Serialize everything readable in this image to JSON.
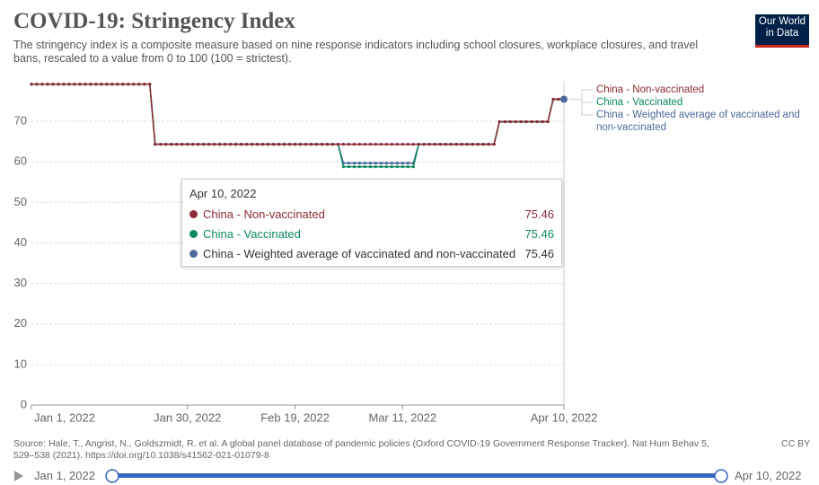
{
  "chart_data": {
    "type": "line",
    "title": "COVID-19: Stringency Index",
    "subtitle": "The stringency index is a composite measure based on nine response indicators including school closures, workplace closures, and travel bans, rescaled to a value from 0 to 100 (100 = strictest).",
    "logo": "Our World in Data",
    "source": "Source: Hale, T., Angrist, N., Goldszmidt, R. et al. A global panel database of pandemic policies (Oxford COVID-19 Government Response Tracker). Nat Hum Behav 5, 529–538 (2021). https://doi.org/10.1038/s41562-021-01079-8",
    "license": "CC BY",
    "timeline": {
      "start": "Jan 1, 2022",
      "end": "Apr 10, 2022"
    },
    "tooltip_date": "Apr 10, 2022",
    "x": [
      "Jan 1, 2022",
      "Jan 2, 2022",
      "Jan 3, 2022",
      "Jan 4, 2022",
      "Jan 5, 2022",
      "Jan 6, 2022",
      "Jan 7, 2022",
      "Jan 8, 2022",
      "Jan 9, 2022",
      "Jan 10, 2022",
      "Jan 11, 2022",
      "Jan 12, 2022",
      "Jan 13, 2022",
      "Jan 14, 2022",
      "Jan 15, 2022",
      "Jan 16, 2022",
      "Jan 17, 2022",
      "Jan 18, 2022",
      "Jan 19, 2022",
      "Jan 20, 2022",
      "Jan 21, 2022",
      "Jan 22, 2022",
      "Jan 23, 2022",
      "Jan 24, 2022",
      "Jan 25, 2022",
      "Jan 26, 2022",
      "Jan 27, 2022",
      "Jan 28, 2022",
      "Jan 29, 2022",
      "Jan 30, 2022",
      "Jan 31, 2022",
      "Feb 1, 2022",
      "Feb 2, 2022",
      "Feb 3, 2022",
      "Feb 4, 2022",
      "Feb 5, 2022",
      "Feb 6, 2022",
      "Feb 7, 2022",
      "Feb 8, 2022",
      "Feb 9, 2022",
      "Feb 10, 2022",
      "Feb 11, 2022",
      "Feb 12, 2022",
      "Feb 13, 2022",
      "Feb 14, 2022",
      "Feb 15, 2022",
      "Feb 16, 2022",
      "Feb 17, 2022",
      "Feb 18, 2022",
      "Feb 19, 2022",
      "Feb 20, 2022",
      "Feb 21, 2022",
      "Feb 22, 2022",
      "Feb 23, 2022",
      "Feb 24, 2022",
      "Feb 25, 2022",
      "Feb 26, 2022",
      "Feb 27, 2022",
      "Feb 28, 2022",
      "Mar 1, 2022",
      "Mar 2, 2022",
      "Mar 3, 2022",
      "Mar 4, 2022",
      "Mar 5, 2022",
      "Mar 6, 2022",
      "Mar 7, 2022",
      "Mar 8, 2022",
      "Mar 9, 2022",
      "Mar 10, 2022",
      "Mar 11, 2022",
      "Mar 12, 2022",
      "Mar 13, 2022",
      "Mar 14, 2022",
      "Mar 15, 2022",
      "Mar 16, 2022",
      "Mar 17, 2022",
      "Mar 18, 2022",
      "Mar 19, 2022",
      "Mar 20, 2022",
      "Mar 21, 2022",
      "Mar 22, 2022",
      "Mar 23, 2022",
      "Mar 24, 2022",
      "Mar 25, 2022",
      "Mar 26, 2022",
      "Mar 27, 2022",
      "Mar 28, 2022",
      "Mar 29, 2022",
      "Mar 30, 2022",
      "Mar 31, 2022",
      "Apr 1, 2022",
      "Apr 2, 2022",
      "Apr 3, 2022",
      "Apr 4, 2022",
      "Apr 5, 2022",
      "Apr 6, 2022",
      "Apr 7, 2022",
      "Apr 8, 2022",
      "Apr 9, 2022",
      "Apr 10, 2022"
    ],
    "xticks": [
      "Jan 1, 2022",
      "Jan 30, 2022",
      "Feb 19, 2022",
      "Mar 11, 2022",
      "Apr 10, 2022"
    ],
    "ylim": [
      0,
      80
    ],
    "yticks": [
      0,
      10,
      20,
      30,
      40,
      50,
      60,
      70
    ],
    "grid": true,
    "series": [
      {
        "name": "China - Non-vaccinated",
        "color": "#8c2a35",
        "values": [
          79.17,
          79.17,
          79.17,
          79.17,
          79.17,
          79.17,
          79.17,
          79.17,
          79.17,
          79.17,
          79.17,
          79.17,
          79.17,
          79.17,
          79.17,
          79.17,
          79.17,
          79.17,
          79.17,
          79.17,
          79.17,
          79.17,
          79.17,
          64.35,
          64.35,
          64.35,
          64.35,
          64.35,
          64.35,
          64.35,
          64.35,
          64.35,
          64.35,
          64.35,
          64.35,
          64.35,
          64.35,
          64.35,
          64.35,
          64.35,
          64.35,
          64.35,
          64.35,
          64.35,
          64.35,
          64.35,
          64.35,
          64.35,
          64.35,
          64.35,
          64.35,
          64.35,
          64.35,
          64.35,
          64.35,
          64.35,
          64.35,
          64.35,
          64.35,
          64.35,
          64.35,
          64.35,
          64.35,
          64.35,
          64.35,
          64.35,
          64.35,
          64.35,
          64.35,
          64.35,
          64.35,
          64.35,
          64.35,
          64.35,
          64.35,
          64.35,
          64.35,
          64.35,
          64.35,
          64.35,
          64.35,
          64.35,
          64.35,
          64.35,
          64.35,
          64.35,
          64.35,
          69.91,
          69.91,
          69.91,
          69.91,
          69.91,
          69.91,
          69.91,
          69.91,
          69.91,
          69.91,
          75.46,
          75.46,
          75.46
        ]
      },
      {
        "name": "China - Vaccinated",
        "color": "#0a8a5f",
        "values": [
          79.17,
          79.17,
          79.17,
          79.17,
          79.17,
          79.17,
          79.17,
          79.17,
          79.17,
          79.17,
          79.17,
          79.17,
          79.17,
          79.17,
          79.17,
          79.17,
          79.17,
          79.17,
          79.17,
          79.17,
          79.17,
          79.17,
          79.17,
          64.35,
          64.35,
          64.35,
          64.35,
          64.35,
          64.35,
          64.35,
          64.35,
          64.35,
          64.35,
          64.35,
          64.35,
          64.35,
          64.35,
          64.35,
          64.35,
          64.35,
          64.35,
          64.35,
          64.35,
          64.35,
          64.35,
          64.35,
          64.35,
          64.35,
          64.35,
          64.35,
          64.35,
          64.35,
          64.35,
          64.35,
          64.35,
          64.35,
          64.35,
          64.35,
          58.8,
          58.8,
          58.8,
          58.8,
          58.8,
          58.8,
          58.8,
          58.8,
          58.8,
          58.8,
          58.8,
          58.8,
          58.8,
          58.8,
          64.35,
          64.35,
          64.35,
          64.35,
          64.35,
          64.35,
          64.35,
          64.35,
          64.35,
          64.35,
          64.35,
          64.35,
          64.35,
          64.35,
          64.35,
          69.91,
          69.91,
          69.91,
          69.91,
          69.91,
          69.91,
          69.91,
          69.91,
          69.91,
          69.91,
          75.46,
          75.46,
          75.46
        ]
      },
      {
        "name": "China - Weighted average of vaccinated and non-vaccinated",
        "color": "#4c6a9c",
        "values": [
          79.17,
          79.17,
          79.17,
          79.17,
          79.17,
          79.17,
          79.17,
          79.17,
          79.17,
          79.17,
          79.17,
          79.17,
          79.17,
          79.17,
          79.17,
          79.17,
          79.17,
          79.17,
          79.17,
          79.17,
          79.17,
          79.17,
          79.17,
          64.35,
          64.35,
          64.35,
          64.35,
          64.35,
          64.35,
          64.35,
          64.35,
          64.35,
          64.35,
          64.35,
          64.35,
          64.35,
          64.35,
          64.35,
          64.35,
          64.35,
          64.35,
          64.35,
          64.35,
          64.35,
          64.35,
          64.35,
          64.35,
          64.35,
          64.35,
          64.35,
          64.35,
          64.35,
          64.35,
          64.35,
          64.35,
          64.35,
          64.35,
          64.35,
          59.7,
          59.7,
          59.7,
          59.7,
          59.7,
          59.7,
          59.7,
          59.7,
          59.7,
          59.7,
          59.7,
          59.7,
          59.7,
          59.7,
          64.35,
          64.35,
          64.35,
          64.35,
          64.35,
          64.35,
          64.35,
          64.35,
          64.35,
          64.35,
          64.35,
          64.35,
          64.35,
          64.35,
          64.35,
          69.91,
          69.91,
          69.91,
          69.91,
          69.91,
          69.91,
          69.91,
          69.91,
          69.91,
          69.91,
          75.46,
          75.46,
          75.46
        ]
      }
    ]
  }
}
